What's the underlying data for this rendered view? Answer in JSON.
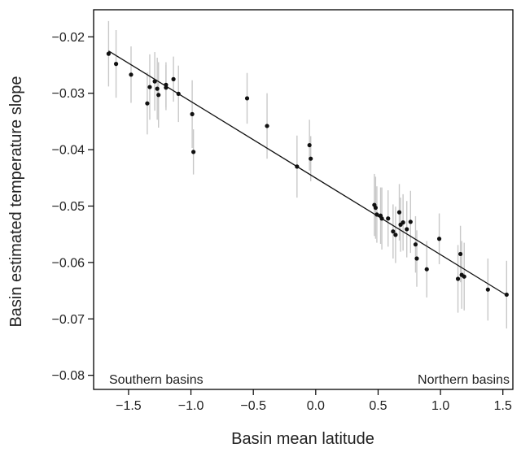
{
  "chart_data": {
    "type": "scatter",
    "xlabel": "Basin mean latitude",
    "ylabel": "Basin estimated temperature slope",
    "xlim": [
      -1.78,
      1.58
    ],
    "ylim": [
      -0.0825,
      -0.0152
    ],
    "x_ticks": [
      -1.5,
      -1.0,
      -0.5,
      0.0,
      0.5,
      1.0,
      1.5
    ],
    "x_tick_labels": [
      "−1.5",
      "−1.0",
      "−0.5",
      "0.0",
      "0.5",
      "1.0",
      "1.5"
    ],
    "y_ticks": [
      -0.02,
      -0.03,
      -0.04,
      -0.05,
      -0.06,
      -0.07,
      -0.08
    ],
    "y_tick_labels": [
      "−0.02",
      "−0.03",
      "−0.04",
      "−0.05",
      "−0.06",
      "−0.07",
      "−0.08"
    ],
    "annotations": {
      "left": "Southern basins",
      "right": "Northern basins"
    },
    "fit_line": {
      "x": [
        -1.66,
        1.53
      ],
      "y": [
        -0.0225,
        -0.0658
      ]
    },
    "grid": false,
    "points": [
      {
        "x": -1.66,
        "y": -0.023,
        "err": 0.0058
      },
      {
        "x": -1.6,
        "y": -0.0248,
        "err": 0.006
      },
      {
        "x": -1.48,
        "y": -0.0267,
        "err": 0.005
      },
      {
        "x": -1.35,
        "y": -0.0318,
        "err": 0.0055
      },
      {
        "x": -1.33,
        "y": -0.0289,
        "err": 0.0058
      },
      {
        "x": -1.29,
        "y": -0.0279,
        "err": 0.0052
      },
      {
        "x": -1.27,
        "y": -0.0292,
        "err": 0.0055
      },
      {
        "x": -1.26,
        "y": -0.0303,
        "err": 0.0058
      },
      {
        "x": -1.2,
        "y": -0.0285,
        "err": 0.004
      },
      {
        "x": -1.2,
        "y": -0.029,
        "err": 0.004
      },
      {
        "x": -1.14,
        "y": -0.0275,
        "err": 0.004
      },
      {
        "x": -1.1,
        "y": -0.0301,
        "err": 0.005
      },
      {
        "x": -0.99,
        "y": -0.0337,
        "err": 0.006
      },
      {
        "x": -0.98,
        "y": -0.0404,
        "err": 0.004
      },
      {
        "x": -0.55,
        "y": -0.0309,
        "err": 0.0045
      },
      {
        "x": -0.39,
        "y": -0.0358,
        "err": 0.0058
      },
      {
        "x": -0.15,
        "y": -0.043,
        "err": 0.0055
      },
      {
        "x": -0.05,
        "y": -0.0392,
        "err": 0.0045
      },
      {
        "x": -0.04,
        "y": -0.0416,
        "err": 0.004
      },
      {
        "x": 0.47,
        "y": -0.0498,
        "err": 0.0055
      },
      {
        "x": 0.48,
        "y": -0.0503,
        "err": 0.0055
      },
      {
        "x": 0.49,
        "y": -0.0515,
        "err": 0.005
      },
      {
        "x": 0.52,
        "y": -0.0517,
        "err": 0.005
      },
      {
        "x": 0.53,
        "y": -0.0522,
        "err": 0.0055
      },
      {
        "x": 0.58,
        "y": -0.0522,
        "err": 0.005
      },
      {
        "x": 0.62,
        "y": -0.0545,
        "err": 0.0048
      },
      {
        "x": 0.64,
        "y": -0.0551,
        "err": 0.005
      },
      {
        "x": 0.67,
        "y": -0.0511,
        "err": 0.005
      },
      {
        "x": 0.68,
        "y": -0.0533,
        "err": 0.0048
      },
      {
        "x": 0.7,
        "y": -0.0529,
        "err": 0.005
      },
      {
        "x": 0.73,
        "y": -0.0541,
        "err": 0.005
      },
      {
        "x": 0.76,
        "y": -0.0528,
        "err": 0.0055
      },
      {
        "x": 0.8,
        "y": -0.0568,
        "err": 0.005
      },
      {
        "x": 0.81,
        "y": -0.0593,
        "err": 0.005
      },
      {
        "x": 0.89,
        "y": -0.0612,
        "err": 0.005
      },
      {
        "x": 0.99,
        "y": -0.0558,
        "err": 0.0045
      },
      {
        "x": 1.14,
        "y": -0.0629,
        "err": 0.006
      },
      {
        "x": 1.16,
        "y": -0.0585,
        "err": 0.005
      },
      {
        "x": 1.17,
        "y": -0.0622,
        "err": 0.006
      },
      {
        "x": 1.19,
        "y": -0.0625,
        "err": 0.006
      },
      {
        "x": 1.38,
        "y": -0.0648,
        "err": 0.0055
      },
      {
        "x": 1.53,
        "y": -0.0657,
        "err": 0.006
      }
    ]
  }
}
